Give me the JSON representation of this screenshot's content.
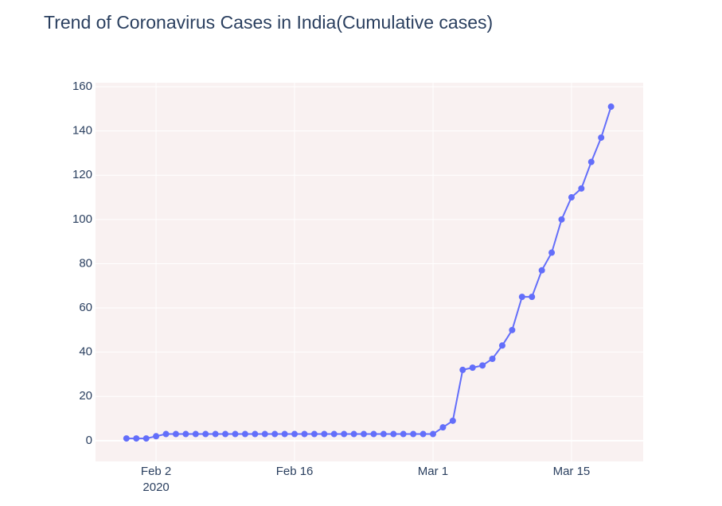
{
  "chart_data": {
    "type": "line",
    "title": "Trend of Coronavirus Cases in India(Cumulative cases)",
    "x": [
      "2020-01-30",
      "2020-01-31",
      "2020-02-01",
      "2020-02-02",
      "2020-02-03",
      "2020-02-04",
      "2020-02-05",
      "2020-02-06",
      "2020-02-07",
      "2020-02-08",
      "2020-02-09",
      "2020-02-10",
      "2020-02-11",
      "2020-02-12",
      "2020-02-13",
      "2020-02-14",
      "2020-02-15",
      "2020-02-16",
      "2020-02-17",
      "2020-02-18",
      "2020-02-19",
      "2020-02-20",
      "2020-02-21",
      "2020-02-22",
      "2020-02-23",
      "2020-02-24",
      "2020-02-25",
      "2020-02-26",
      "2020-02-27",
      "2020-02-28",
      "2020-02-29",
      "2020-03-01",
      "2020-03-02",
      "2020-03-03",
      "2020-03-04",
      "2020-03-05",
      "2020-03-06",
      "2020-03-07",
      "2020-03-08",
      "2020-03-09",
      "2020-03-10",
      "2020-03-11",
      "2020-03-12",
      "2020-03-13",
      "2020-03-14",
      "2020-03-15",
      "2020-03-16",
      "2020-03-17",
      "2020-03-18",
      "2020-03-19"
    ],
    "values": [
      1,
      1,
      1,
      2,
      3,
      3,
      3,
      3,
      3,
      3,
      3,
      3,
      3,
      3,
      3,
      3,
      3,
      3,
      3,
      3,
      3,
      3,
      3,
      3,
      3,
      3,
      3,
      3,
      3,
      3,
      3,
      3,
      6,
      9,
      32,
      33,
      34,
      37,
      43,
      50,
      65,
      65,
      77,
      85,
      100,
      110,
      114,
      126,
      137,
      151
    ],
    "color": "#636efa",
    "xlim": [
      "2020-01-26T21:00",
      "2020-03-22T06:00"
    ],
    "xticks": [
      {
        "value": "2020-02-02",
        "label": [
          "Feb 2",
          "2020"
        ]
      },
      {
        "value": "2020-02-16",
        "label": [
          "Feb 16"
        ]
      },
      {
        "value": "2020-03-01",
        "label": [
          "Mar 1"
        ]
      },
      {
        "value": "2020-03-15",
        "label": [
          "Mar 15"
        ]
      }
    ],
    "ylim": [
      -9.4,
      161.8
    ],
    "yticks": [
      0,
      20,
      40,
      60,
      80,
      100,
      120,
      140,
      160
    ],
    "grid": true
  }
}
